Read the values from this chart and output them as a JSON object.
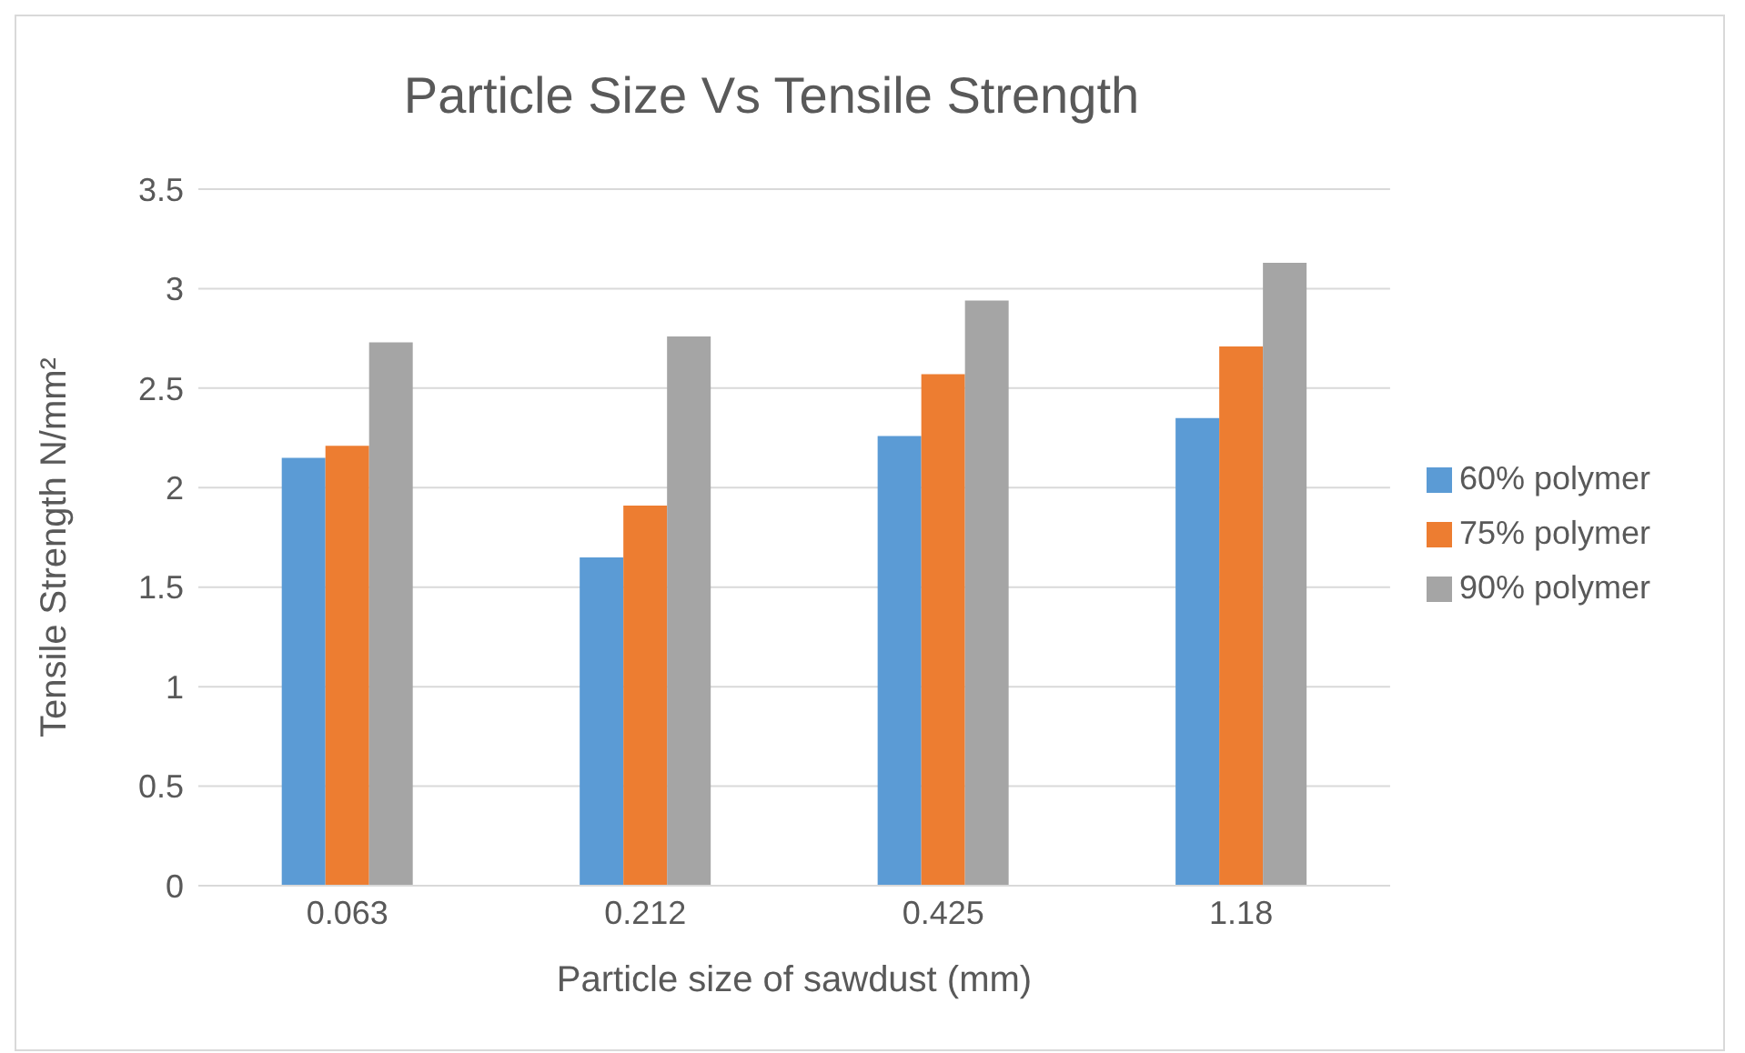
{
  "chart_data": {
    "type": "bar",
    "title": "Particle Size Vs Tensile Strength",
    "xlabel": "Particle size of sawdust (mm)",
    "ylabel": "Tensile Strength N/mm²",
    "categories": [
      "0.063",
      "0.212",
      "0.425",
      "1.18"
    ],
    "series": [
      {
        "name": "60% polymer",
        "color": "#5b9bd5",
        "values": [
          2.15,
          1.65,
          2.26,
          2.35
        ]
      },
      {
        "name": "75% polymer",
        "color": "#ed7d31",
        "values": [
          2.21,
          1.91,
          2.57,
          2.71
        ]
      },
      {
        "name": "90% polymer",
        "color": "#a5a5a5",
        "values": [
          2.73,
          2.76,
          2.94,
          3.13
        ]
      }
    ],
    "ylim": [
      0,
      3.5
    ],
    "yticks": [
      0,
      0.5,
      1,
      1.5,
      2,
      2.5,
      3,
      3.5
    ],
    "grid": "y",
    "legend": "right"
  }
}
